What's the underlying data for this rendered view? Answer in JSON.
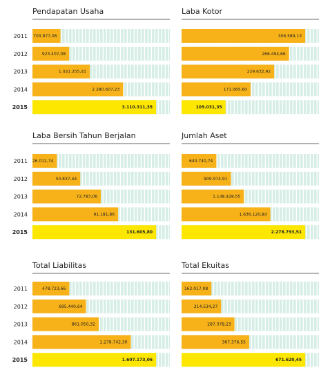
{
  "chart_data": [
    {
      "type": "bar",
      "title": "Pendapatan Usaha",
      "categories": [
        "2011",
        "2012",
        "2013",
        "2014",
        "2015"
      ],
      "values": [
        703877.06,
        923407.08,
        1441255.41,
        2280607.23,
        3110311.35
      ],
      "value_labels": [
        "703.877,06",
        "923.407,08",
        "1.441.255,41",
        "2.280.607,23",
        "3.110.311,35"
      ],
      "colors": [
        "#f7b219",
        "#f7b219",
        "#f7b219",
        "#f7b219",
        "#fde700"
      ]
    },
    {
      "type": "bar",
      "title": "Laba Kotor",
      "values": [
        306589.13,
        266494.66,
        229632.92,
        171065.6,
        109031.35
      ],
      "value_labels": [
        "306.589,13",
        "266.494,66",
        "229.632,92",
        "171.065,60",
        "109.031,35"
      ],
      "colors": [
        "#f7b219",
        "#f7b219",
        "#f7b219",
        "#f7b219",
        "#fde700"
      ]
    },
    {
      "type": "bar",
      "title": "Laba Bersih Tahun Berjalan",
      "categories": [
        "2011",
        "2012",
        "2013",
        "2014",
        "2015"
      ],
      "values": [
        26012.74,
        50837.44,
        72783.06,
        91181.86,
        131605.8
      ],
      "value_labels": [
        "26.012,74",
        "50.837,44",
        "72.783,06",
        "91.181,86",
        "131.605,80"
      ],
      "colors": [
        "#f7b219",
        "#f7b219",
        "#f7b219",
        "#f7b219",
        "#fde700"
      ]
    },
    {
      "type": "bar",
      "title": "Jumlah Aset",
      "values": [
        640740.74,
        909974.91,
        1148428.55,
        1636120.84,
        2278793.51
      ],
      "value_labels": [
        "640.740,74",
        "909.974,91",
        "1.148.428,55",
        "1.636.120,84",
        "2.278.793,51"
      ],
      "colors": [
        "#f7b219",
        "#f7b219",
        "#f7b219",
        "#f7b219",
        "#fde700"
      ]
    },
    {
      "type": "bar",
      "title": "Total Liabilitas",
      "categories": [
        "2011",
        "2012",
        "2013",
        "2014",
        "2015"
      ],
      "values": [
        478723.66,
        695440.64,
        861050.32,
        1278742.3,
        1607173.06
      ],
      "value_labels": [
        "478.723,66",
        "695.440,64",
        "861.050,32",
        "1.278.742,30",
        "1.607.173,06"
      ],
      "colors": [
        "#f7b219",
        "#f7b219",
        "#f7b219",
        "#f7b219",
        "#fde700"
      ]
    },
    {
      "type": "bar",
      "title": "Total Ekuitas",
      "values": [
        162017.08,
        214534.27,
        287378.23,
        367376.55,
        671620.45
      ],
      "value_labels": [
        "162.017,08",
        "214.534,27",
        "287.378,23",
        "367.376,55",
        "671.620,45"
      ],
      "colors": [
        "#f7b219",
        "#f7b219",
        "#f7b219",
        "#f7b219",
        "#fde700"
      ]
    }
  ]
}
